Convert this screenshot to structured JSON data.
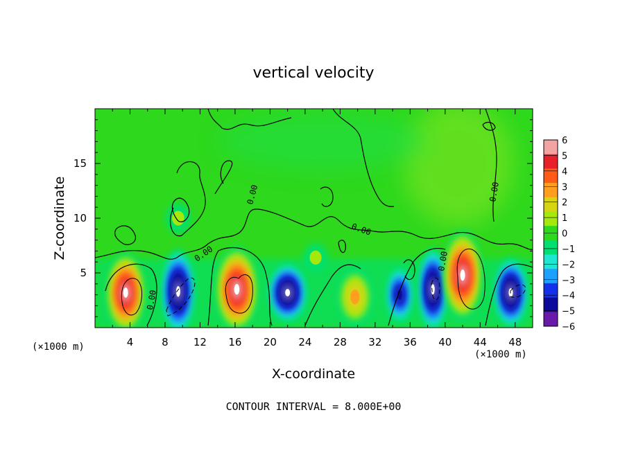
{
  "chart_data": {
    "type": "heatmap",
    "title": "vertical velocity",
    "xlabel": "X-coordinate",
    "ylabel": "Z-coordinate",
    "x_unit": "(×1000 m)",
    "z_unit": "(×1000 m)",
    "xlim": [
      0,
      50
    ],
    "ylim": [
      0,
      20
    ],
    "x_ticks": [
      4,
      8,
      12,
      16,
      20,
      24,
      28,
      32,
      36,
      40,
      44,
      48
    ],
    "y_ticks": [
      5,
      10,
      15
    ],
    "colorbar": {
      "levels": [
        6,
        5,
        4,
        3,
        2,
        1,
        0,
        -1,
        -2,
        -3,
        -4,
        -5,
        -6
      ],
      "level_labels": [
        "6",
        "5",
        "4",
        "3",
        "2",
        "1",
        "0",
        "−1",
        "−2",
        "−3",
        "−4",
        "−5",
        "−6"
      ],
      "colors": [
        "#f4a3a3",
        "#e8202a",
        "#ff5a18",
        "#ff9e1f",
        "#d7d414",
        "#a4e80c",
        "#2ed81c",
        "#00e070",
        "#1fe6d0",
        "#1ea0ff",
        "#1430e8",
        "#0b0a9a",
        "#6a1aa8"
      ]
    },
    "contour_label": "0.00",
    "contour_interval_text": "CONTOUR INTERVAL = 8.000E+00",
    "cells": [
      {
        "x": 3.5,
        "z": 3.2,
        "w": 2.2,
        "h": 5.6,
        "value": 9
      },
      {
        "x": 9.5,
        "z": 3.3,
        "w": 1.5,
        "h": 6.0,
        "value": -9
      },
      {
        "x": 16.2,
        "z": 3.5,
        "w": 2.6,
        "h": 6.0,
        "value": 9
      },
      {
        "x": 22.0,
        "z": 3.2,
        "w": 2.2,
        "h": 3.6,
        "value": -9
      },
      {
        "x": 29.7,
        "z": 2.8,
        "w": 1.9,
        "h": 3.6,
        "value": 5
      },
      {
        "x": 34.8,
        "z": 3.0,
        "w": 0.9,
        "h": 3.4,
        "value": -7
      },
      {
        "x": 38.6,
        "z": 3.5,
        "w": 1.1,
        "h": 5.8,
        "value": -9
      },
      {
        "x": 42.0,
        "z": 4.8,
        "w": 2.2,
        "h": 6.4,
        "value": 9
      },
      {
        "x": 47.5,
        "z": 3.2,
        "w": 1.6,
        "h": 4.6,
        "value": -9
      },
      {
        "x": 25.2,
        "z": 6.4,
        "w": 0.5,
        "h": 0.8,
        "value": 3
      },
      {
        "x": 9.5,
        "z": 10.0,
        "w": 0.6,
        "h": 0.9,
        "value": 3
      }
    ]
  }
}
